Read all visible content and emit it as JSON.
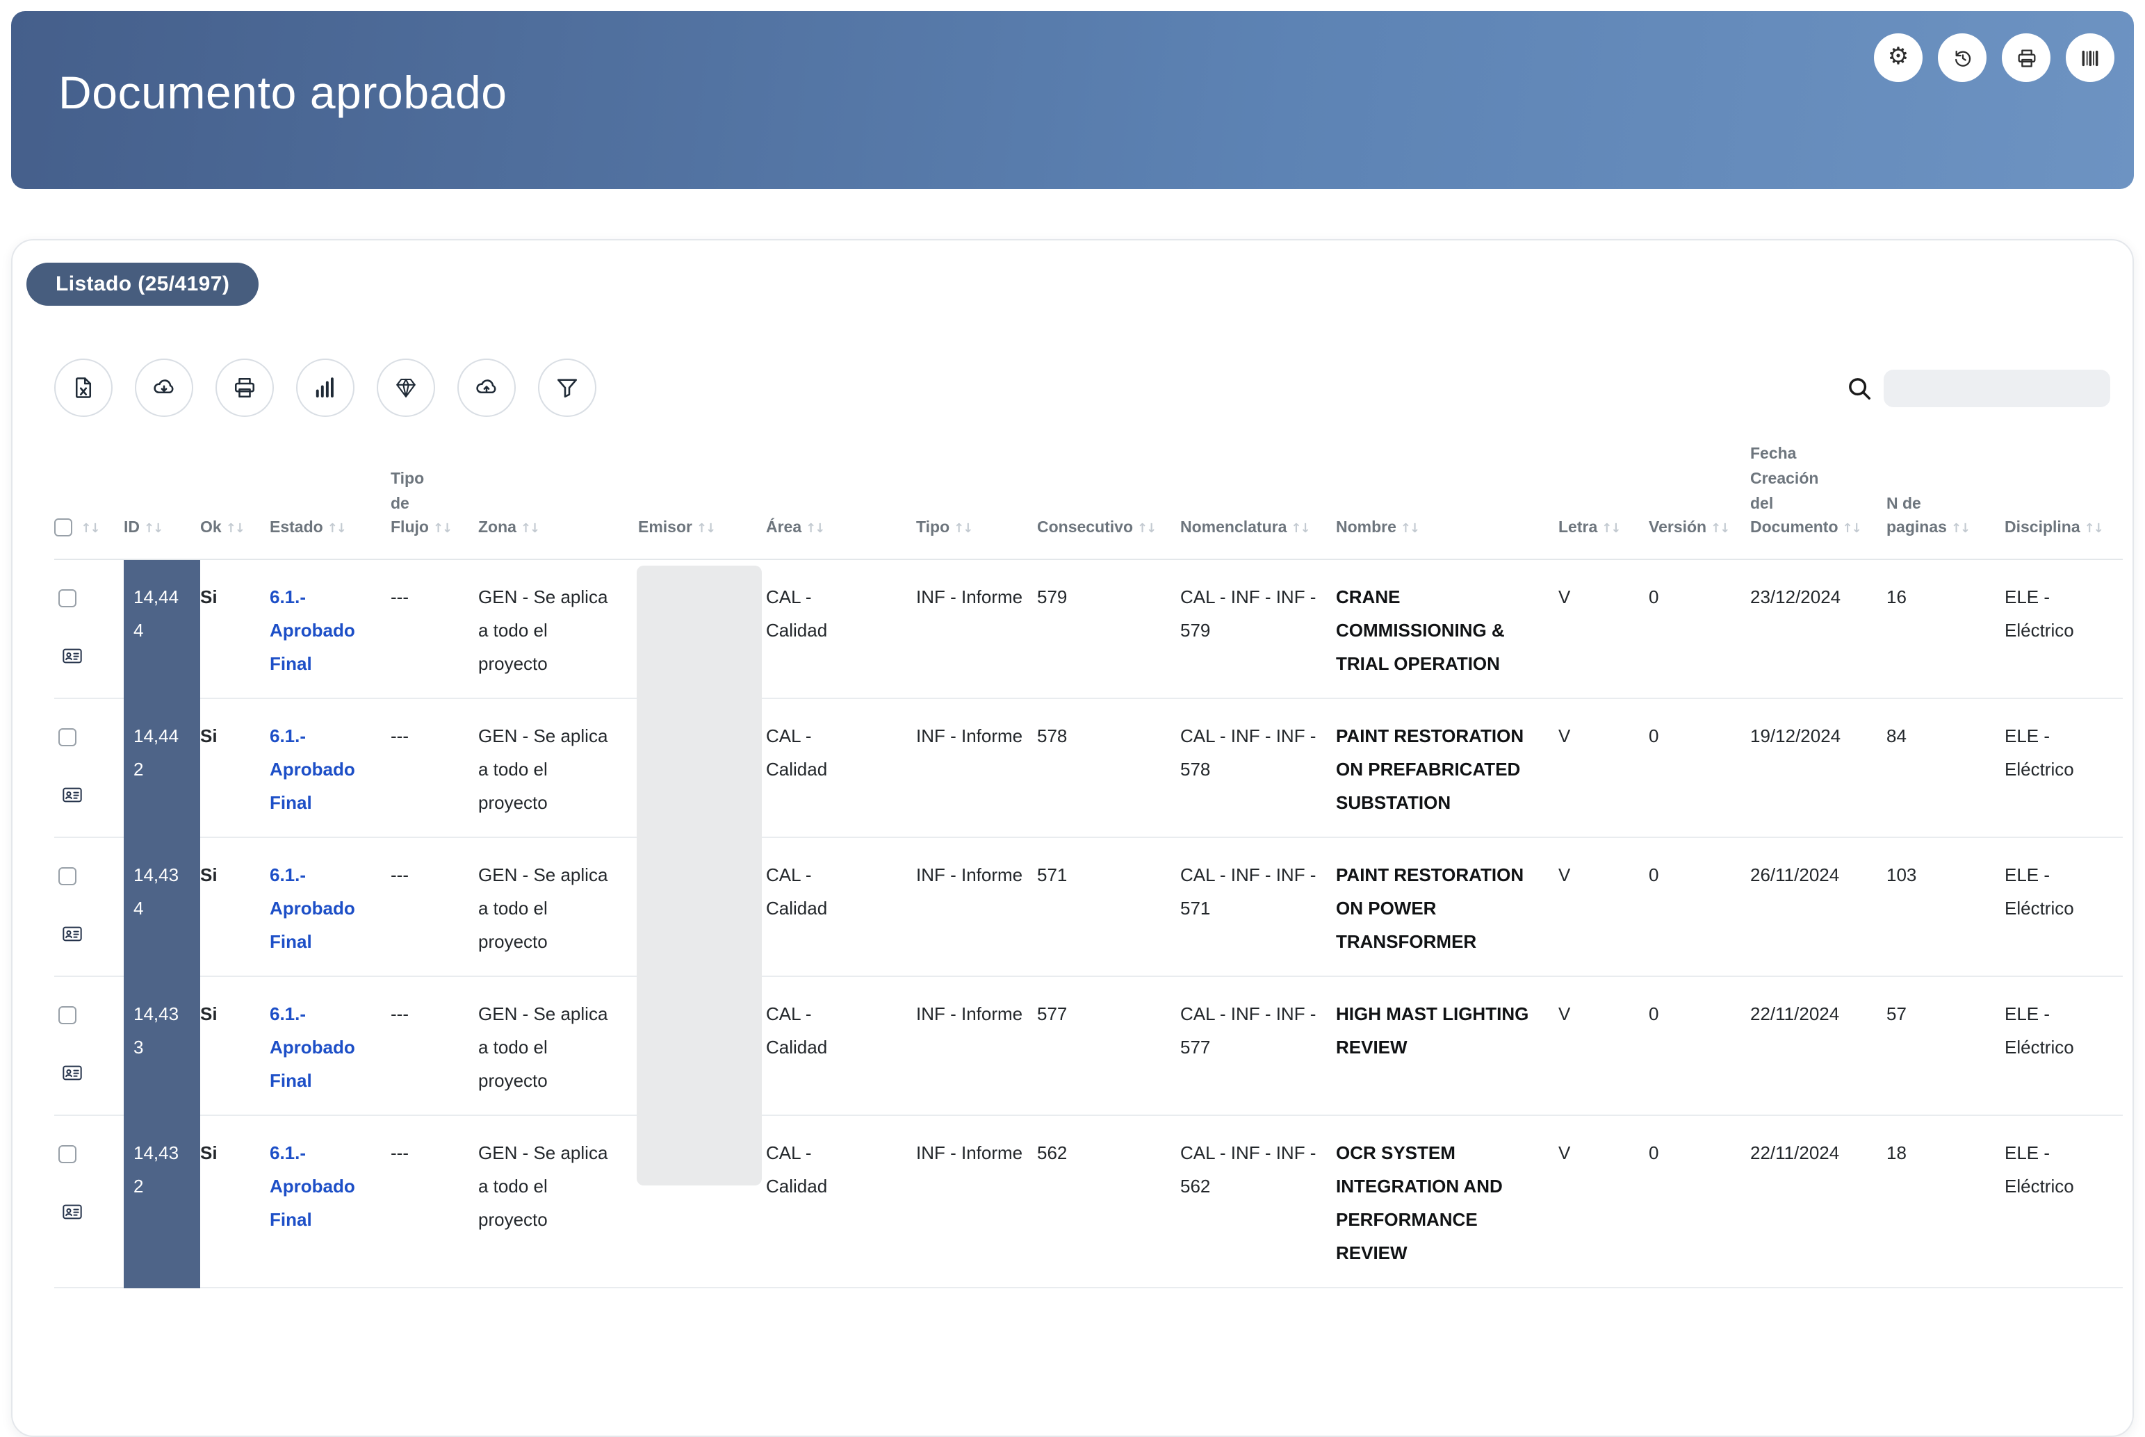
{
  "header": {
    "title": "Documento aprobado",
    "actions": [
      {
        "name": "settings-button",
        "icon": "gears-icon"
      },
      {
        "name": "history-button",
        "icon": "history-icon"
      },
      {
        "name": "print-button",
        "icon": "printer-icon"
      },
      {
        "name": "barcode-button",
        "icon": "barcode-icon"
      }
    ]
  },
  "list": {
    "badge": "Listado (25/4197)",
    "toolbar": [
      {
        "name": "export-excel-button",
        "icon": "file-excel-icon"
      },
      {
        "name": "cloud-download-button",
        "icon": "cloud-download-icon"
      },
      {
        "name": "print-button",
        "icon": "printer-icon"
      },
      {
        "name": "chart-button",
        "icon": "bar-chart-icon"
      },
      {
        "name": "premium-button",
        "icon": "diamond-icon"
      },
      {
        "name": "cloud-upload-button",
        "icon": "cloud-upload-icon"
      },
      {
        "name": "filter-button",
        "icon": "filter-icon"
      }
    ],
    "search": {
      "value": "",
      "placeholder": ""
    },
    "table": {
      "columns": [
        "",
        "ID",
        "Ok",
        "Estado",
        "Tipo de Flujo",
        "Zona",
        "Emisor",
        "Área",
        "Tipo",
        "Consecutivo",
        "Nomenclatura",
        "Nombre",
        "Letra",
        "Versión",
        "Fecha Creación del Documento",
        "N de paginas",
        "Disciplina"
      ],
      "rows": [
        {
          "id": "14,444",
          "ok": "Si",
          "estado": "6.1.- Aprobado Final",
          "tipo_de_flujo": "---",
          "zona": "GEN - Se aplica a todo el proyecto",
          "emisor": "",
          "area": "CAL - Calidad",
          "tipo": "INF - Informe",
          "consecutivo": "579",
          "nomenclatura": "CAL - INF - INF - 579",
          "nombre": "CRANE COMMISSIONING & TRIAL OPERATION",
          "letra": "V",
          "version": "0",
          "fecha_creacion": "23/12/2024",
          "n_paginas": "16",
          "disciplina": "ELE - Eléctrico"
        },
        {
          "id": "14,442",
          "ok": "Si",
          "estado": "6.1.- Aprobado Final",
          "tipo_de_flujo": "---",
          "zona": "GEN - Se aplica a todo el proyecto",
          "emisor": "",
          "area": "CAL - Calidad",
          "tipo": "INF - Informe",
          "consecutivo": "578",
          "nomenclatura": "CAL - INF - INF - 578",
          "nombre": "PAINT RESTORATION ON PREFABRICATED SUBSTATION",
          "letra": "V",
          "version": "0",
          "fecha_creacion": "19/12/2024",
          "n_paginas": "84",
          "disciplina": "ELE - Eléctrico"
        },
        {
          "id": "14,434",
          "ok": "Si",
          "estado": "6.1.- Aprobado Final",
          "tipo_de_flujo": "---",
          "zona": "GEN - Se aplica a todo el proyecto",
          "emisor": "",
          "area": "CAL - Calidad",
          "tipo": "INF - Informe",
          "consecutivo": "571",
          "nomenclatura": "CAL - INF - INF - 571",
          "nombre": "PAINT RESTORATION ON POWER TRANSFORMER",
          "letra": "V",
          "version": "0",
          "fecha_creacion": "26/11/2024",
          "n_paginas": "103",
          "disciplina": "ELE - Eléctrico"
        },
        {
          "id": "14,433",
          "ok": "Si",
          "estado": "6.1.- Aprobado Final",
          "tipo_de_flujo": "---",
          "zona": "GEN - Se aplica a todo el proyecto",
          "emisor": "",
          "area": "CAL - Calidad",
          "tipo": "INF - Informe",
          "consecutivo": "577",
          "nomenclatura": "CAL - INF - INF - 577",
          "nombre": "HIGH MAST LIGHTING REVIEW",
          "letra": "V",
          "version": "0",
          "fecha_creacion": "22/11/2024",
          "n_paginas": "57",
          "disciplina": "ELE - Eléctrico"
        },
        {
          "id": "14,432",
          "ok": "Si",
          "estado": "6.1.- Aprobado Final",
          "tipo_de_flujo": "---",
          "zona": "GEN - Se aplica a todo el proyecto",
          "emisor": "",
          "area": "CAL - Calidad",
          "tipo": "INF - Informe",
          "consecutivo": "562",
          "nomenclatura": "CAL - INF - INF - 562",
          "nombre": "OCR SYSTEM INTEGRATION AND PERFORMANCE REVIEW",
          "letra": "V",
          "version": "0",
          "fecha_creacion": "22/11/2024",
          "n_paginas": "18",
          "disciplina": "ELE - Eléctrico"
        }
      ]
    }
  },
  "colors": {
    "banner_gradient_start": "#455f8b",
    "banner_gradient_end": "#6d93c2",
    "badge_bg": "#475d7e",
    "id_column_bg": "#4e6488",
    "link_blue": "#1d4fc7"
  }
}
